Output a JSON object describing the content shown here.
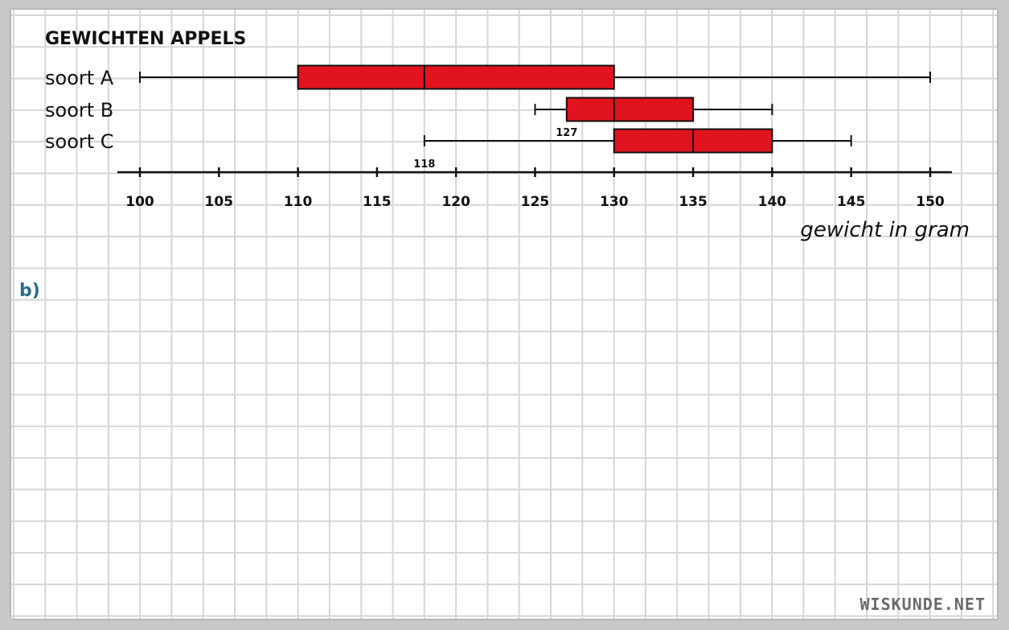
{
  "chart_data": {
    "type": "boxplot",
    "title": "GEWICHTEN APPELS",
    "xlabel": "gewicht in gram",
    "xlim": [
      100,
      150
    ],
    "xticks": [
      100,
      105,
      110,
      115,
      120,
      125,
      130,
      135,
      140,
      145,
      150
    ],
    "series": [
      {
        "name": "soort A",
        "min": 100,
        "q1": 110,
        "median": 118,
        "q3": 130,
        "max": 150
      },
      {
        "name": "soort B",
        "min": 125,
        "q1": 127,
        "median": 130,
        "q3": 135,
        "max": 140
      },
      {
        "name": "soort C",
        "min": 118,
        "q1": 130,
        "median": 135,
        "q3": 140,
        "max": 145
      }
    ],
    "annotations": [
      {
        "text": "127",
        "value": 127,
        "series": "soort B"
      },
      {
        "text": "118",
        "value": 118,
        "series": "soort C"
      }
    ],
    "box_color": "#e0131f",
    "grid": true
  },
  "part_label": "b)",
  "watermark": "WISKUNDE.NET"
}
